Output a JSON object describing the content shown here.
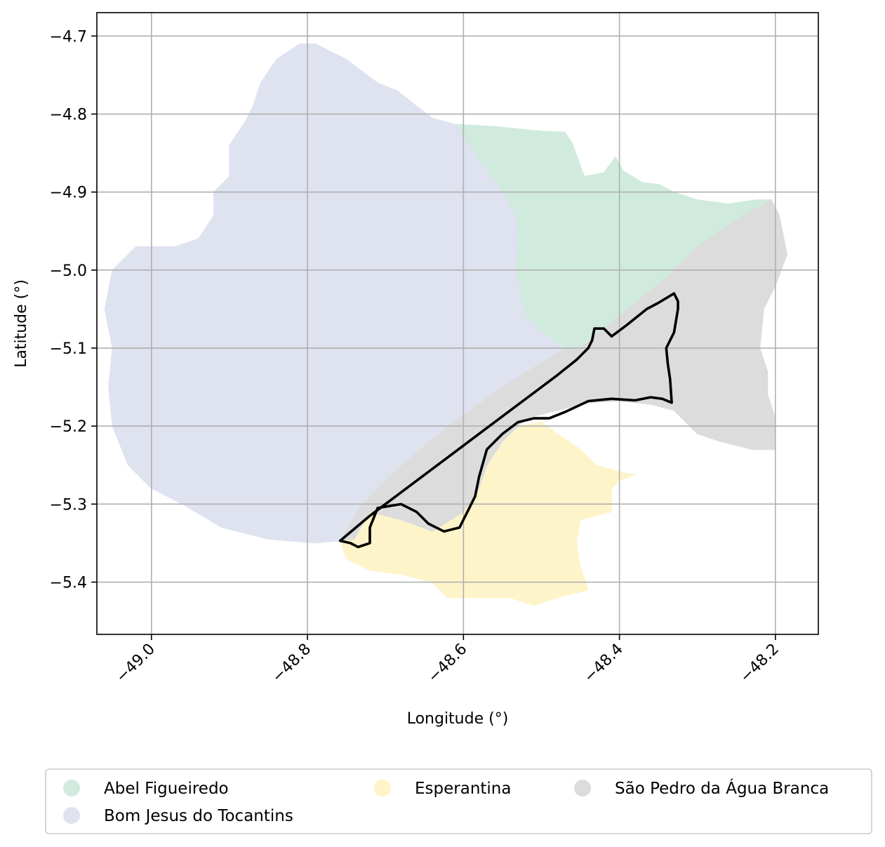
{
  "chart_data": {
    "type": "map",
    "xlabel": "Longitude (°)",
    "ylabel": "Latitude (°)",
    "xlim": [
      -49.07,
      -48.145
    ],
    "ylim": [
      -5.467,
      -4.67
    ],
    "xticks": [
      -49.0,
      -48.8,
      -48.6,
      -48.4,
      -48.2
    ],
    "xtick_labels": [
      "−49.0",
      "−48.8",
      "−48.6",
      "−48.4",
      "−48.2"
    ],
    "yticks": [
      -4.7,
      -4.8,
      -4.9,
      -5.0,
      -5.1,
      -5.2,
      -5.3,
      -5.4
    ],
    "ytick_labels": [
      "−4.7",
      "−4.8",
      "−4.9",
      "−5.0",
      "−5.1",
      "−5.2",
      "−5.3",
      "−5.4"
    ],
    "grid": true,
    "legend_position": "bottom",
    "regions": [
      {
        "name": "Abel Figueiredo",
        "color": "#d0ebdd",
        "coords": [
          [
            -48.612,
            -4.813
          ],
          [
            -48.56,
            -4.816
          ],
          [
            -48.5,
            -4.822
          ],
          [
            -48.47,
            -4.823
          ],
          [
            -48.46,
            -4.838
          ],
          [
            -48.445,
            -4.88
          ],
          [
            -48.42,
            -4.875
          ],
          [
            -48.405,
            -4.855
          ],
          [
            -48.395,
            -4.873
          ],
          [
            -48.37,
            -4.888
          ],
          [
            -48.35,
            -4.89
          ],
          [
            -48.33,
            -4.9
          ],
          [
            -48.3,
            -4.91
          ],
          [
            -48.26,
            -4.915
          ],
          [
            -48.225,
            -4.91
          ],
          [
            -48.205,
            -4.91
          ],
          [
            -48.24,
            -4.93
          ],
          [
            -48.3,
            -4.97
          ],
          [
            -48.34,
            -5.01
          ],
          [
            -48.45,
            -5.1
          ],
          [
            -48.47,
            -5.1
          ],
          [
            -48.5,
            -5.08
          ],
          [
            -48.52,
            -5.06
          ],
          [
            -48.528,
            -5.03
          ],
          [
            -48.533,
            -5.0
          ],
          [
            -48.53,
            -4.96
          ],
          [
            -48.533,
            -4.93
          ],
          [
            -48.55,
            -4.9
          ],
          [
            -48.58,
            -4.86
          ]
        ]
      },
      {
        "name": "Bom Jesus do Tocantins",
        "color": "#dfe3f0",
        "coords": [
          [
            -48.81,
            -4.71
          ],
          [
            -48.79,
            -4.71
          ],
          [
            -48.77,
            -4.72
          ],
          [
            -48.75,
            -4.73
          ],
          [
            -48.73,
            -4.745
          ],
          [
            -48.71,
            -4.76
          ],
          [
            -48.685,
            -4.77
          ],
          [
            -48.66,
            -4.79
          ],
          [
            -48.64,
            -4.805
          ],
          [
            -48.612,
            -4.813
          ],
          [
            -48.58,
            -4.86
          ],
          [
            -48.55,
            -4.9
          ],
          [
            -48.533,
            -4.93
          ],
          [
            -48.53,
            -4.96
          ],
          [
            -48.533,
            -5.0
          ],
          [
            -48.528,
            -5.03
          ],
          [
            -48.52,
            -5.06
          ],
          [
            -48.5,
            -5.08
          ],
          [
            -48.47,
            -5.1
          ],
          [
            -48.55,
            -5.15
          ],
          [
            -48.62,
            -5.2
          ],
          [
            -48.69,
            -5.26
          ],
          [
            -48.73,
            -5.3
          ],
          [
            -48.758,
            -5.347
          ],
          [
            -48.79,
            -5.35
          ],
          [
            -48.85,
            -5.345
          ],
          [
            -48.91,
            -5.33
          ],
          [
            -48.96,
            -5.3
          ],
          [
            -49.0,
            -5.28
          ],
          [
            -49.03,
            -5.25
          ],
          [
            -49.05,
            -5.2
          ],
          [
            -49.055,
            -5.15
          ],
          [
            -49.05,
            -5.1
          ],
          [
            -49.06,
            -5.05
          ],
          [
            -49.05,
            -5.0
          ],
          [
            -49.02,
            -4.97
          ],
          [
            -48.99,
            -4.97
          ],
          [
            -48.97,
            -4.97
          ],
          [
            -48.94,
            -4.96
          ],
          [
            -48.92,
            -4.93
          ],
          [
            -48.92,
            -4.9
          ],
          [
            -48.9,
            -4.88
          ],
          [
            -48.9,
            -4.84
          ],
          [
            -48.88,
            -4.81
          ],
          [
            -48.87,
            -4.79
          ],
          [
            -48.86,
            -4.76
          ],
          [
            -48.84,
            -4.73
          ]
        ]
      },
      {
        "name": "Esperantina",
        "color": "#fef4c9",
        "coords": [
          [
            -48.758,
            -5.347
          ],
          [
            -48.75,
            -5.37
          ],
          [
            -48.72,
            -5.385
          ],
          [
            -48.68,
            -5.39
          ],
          [
            -48.64,
            -5.4
          ],
          [
            -48.62,
            -5.42
          ],
          [
            -48.58,
            -5.42
          ],
          [
            -48.54,
            -5.42
          ],
          [
            -48.51,
            -5.43
          ],
          [
            -48.48,
            -5.42
          ],
          [
            -48.44,
            -5.41
          ],
          [
            -48.45,
            -5.38
          ],
          [
            -48.455,
            -5.35
          ],
          [
            -48.45,
            -5.32
          ],
          [
            -48.41,
            -5.31
          ],
          [
            -48.41,
            -5.28
          ],
          [
            -48.4,
            -5.27
          ],
          [
            -48.38,
            -5.262
          ],
          [
            -48.395,
            -5.26
          ],
          [
            -48.43,
            -5.25
          ],
          [
            -48.45,
            -5.23
          ],
          [
            -48.48,
            -5.21
          ],
          [
            -48.5,
            -5.195
          ],
          [
            -48.53,
            -5.2
          ],
          [
            -48.56,
            -5.23
          ],
          [
            -48.58,
            -5.27
          ],
          [
            -48.6,
            -5.31
          ],
          [
            -48.64,
            -5.33
          ],
          [
            -48.68,
            -5.32
          ],
          [
            -48.72,
            -5.31
          ]
        ]
      },
      {
        "name": "São Pedro da Água Branca",
        "color": "#dcdcdc",
        "coords": [
          [
            -48.758,
            -5.347
          ],
          [
            -48.73,
            -5.3
          ],
          [
            -48.69,
            -5.26
          ],
          [
            -48.62,
            -5.2
          ],
          [
            -48.55,
            -5.15
          ],
          [
            -48.47,
            -5.1
          ],
          [
            -48.45,
            -5.1
          ],
          [
            -48.34,
            -5.01
          ],
          [
            -48.3,
            -4.97
          ],
          [
            -48.24,
            -4.93
          ],
          [
            -48.205,
            -4.91
          ],
          [
            -48.195,
            -4.93
          ],
          [
            -48.185,
            -4.98
          ],
          [
            -48.2,
            -5.02
          ],
          [
            -48.215,
            -5.05
          ],
          [
            -48.22,
            -5.1
          ],
          [
            -48.21,
            -5.13
          ],
          [
            -48.21,
            -5.16
          ],
          [
            -48.2,
            -5.19
          ],
          [
            -48.2,
            -5.23
          ],
          [
            -48.23,
            -5.23
          ],
          [
            -48.27,
            -5.22
          ],
          [
            -48.3,
            -5.21
          ],
          [
            -48.33,
            -5.18
          ],
          [
            -48.36,
            -5.172
          ],
          [
            -48.4,
            -5.168
          ],
          [
            -48.44,
            -5.17
          ],
          [
            -48.48,
            -5.18
          ],
          [
            -48.52,
            -5.19
          ],
          [
            -48.55,
            -5.22
          ],
          [
            -48.57,
            -5.25
          ],
          [
            -48.58,
            -5.28
          ],
          [
            -48.6,
            -5.31
          ],
          [
            -48.64,
            -5.335
          ],
          [
            -48.68,
            -5.32
          ],
          [
            -48.72,
            -5.31
          ],
          [
            -48.74,
            -5.345
          ]
        ]
      }
    ],
    "highlight_outline": {
      "color": "#000000",
      "coords": [
        [
          -48.758,
          -5.347
        ],
        [
          -48.72,
          -5.315
        ],
        [
          -48.68,
          -5.285
        ],
        [
          -48.64,
          -5.255
        ],
        [
          -48.6,
          -5.225
        ],
        [
          -48.56,
          -5.195
        ],
        [
          -48.52,
          -5.165
        ],
        [
          -48.48,
          -5.135
        ],
        [
          -48.455,
          -5.115
        ],
        [
          -48.44,
          -5.1
        ],
        [
          -48.435,
          -5.09
        ],
        [
          -48.432,
          -5.075
        ],
        [
          -48.42,
          -5.075
        ],
        [
          -48.41,
          -5.085
        ],
        [
          -48.39,
          -5.07
        ],
        [
          -48.365,
          -5.05
        ],
        [
          -48.35,
          -5.042
        ],
        [
          -48.33,
          -5.03
        ],
        [
          -48.325,
          -5.04
        ],
        [
          -48.325,
          -5.05
        ],
        [
          -48.33,
          -5.08
        ],
        [
          -48.34,
          -5.1
        ],
        [
          -48.338,
          -5.12
        ],
        [
          -48.335,
          -5.14
        ],
        [
          -48.333,
          -5.17
        ],
        [
          -48.345,
          -5.165
        ],
        [
          -48.36,
          -5.163
        ],
        [
          -48.38,
          -5.167
        ],
        [
          -48.41,
          -5.165
        ],
        [
          -48.44,
          -5.168
        ],
        [
          -48.47,
          -5.182
        ],
        [
          -48.49,
          -5.19
        ],
        [
          -48.51,
          -5.19
        ],
        [
          -48.53,
          -5.195
        ],
        [
          -48.55,
          -5.21
        ],
        [
          -48.57,
          -5.23
        ],
        [
          -48.58,
          -5.265
        ],
        [
          -48.585,
          -5.29
        ],
        [
          -48.595,
          -5.31
        ],
        [
          -48.605,
          -5.33
        ],
        [
          -48.625,
          -5.335
        ],
        [
          -48.645,
          -5.325
        ],
        [
          -48.66,
          -5.31
        ],
        [
          -48.68,
          -5.3
        ],
        [
          -48.71,
          -5.305
        ],
        [
          -48.72,
          -5.33
        ],
        [
          -48.72,
          -5.35
        ],
        [
          -48.735,
          -5.355
        ],
        [
          -48.745,
          -5.35
        ],
        [
          -48.758,
          -5.347
        ]
      ]
    },
    "legend": [
      {
        "label": "Abel Figueiredo",
        "color": "#d0ebdd"
      },
      {
        "label": "Bom Jesus do Tocantins",
        "color": "#dfe3f0"
      },
      {
        "label": "Esperantina",
        "color": "#fef4c9"
      },
      {
        "label": "São Pedro da Água Branca",
        "color": "#dcdcdc"
      }
    ]
  }
}
